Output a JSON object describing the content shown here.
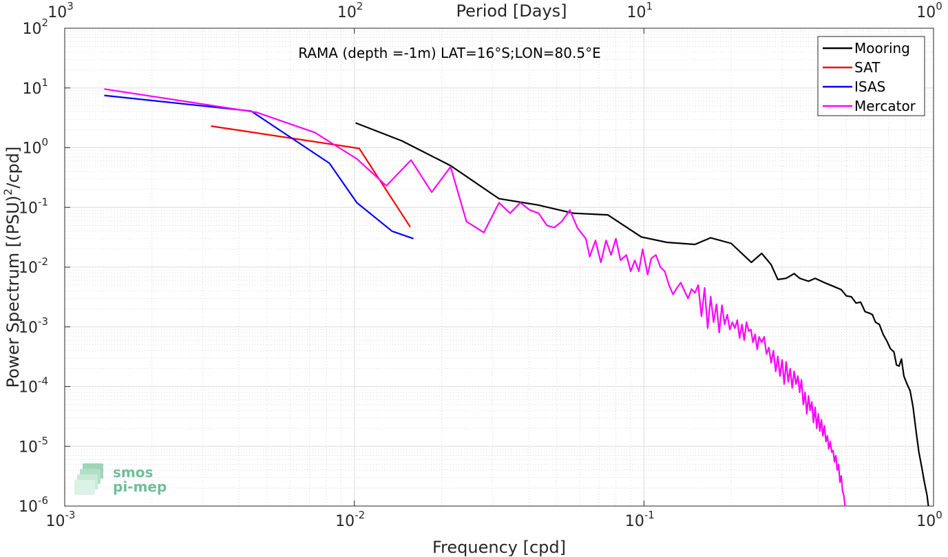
{
  "chart_data": {
    "type": "line",
    "title": "RAMA (depth =-1m) LAT=16°S;LON=80.5°E",
    "xlabel": "Frequency [cpd]",
    "ylabel_main": "Power Spectrum [(PSU)",
    "ylabel_sup": "2",
    "ylabel_tail": "/cpd]",
    "top_xlabel": "Period [Days]",
    "x_scale": "log",
    "y_scale": "log",
    "xlim": [
      0.001,
      1
    ],
    "ylim": [
      1e-06,
      100
    ],
    "grid": true,
    "legend_position": "top-right",
    "x_ticks": [
      {
        "base": "10",
        "exp": "-3"
      },
      {
        "base": "10",
        "exp": "-2"
      },
      {
        "base": "10",
        "exp": "-1"
      },
      {
        "base": "10",
        "exp": "0"
      }
    ],
    "top_ticks": [
      {
        "base": "10",
        "exp": "3"
      },
      {
        "base": "10",
        "exp": "2"
      },
      {
        "base": "10",
        "exp": "1"
      },
      {
        "base": "10",
        "exp": "0"
      }
    ],
    "y_ticks": [
      {
        "base": "10",
        "exp": "-6"
      },
      {
        "base": "10",
        "exp": "-5"
      },
      {
        "base": "10",
        "exp": "-4"
      },
      {
        "base": "10",
        "exp": "-3"
      },
      {
        "base": "10",
        "exp": "-2"
      },
      {
        "base": "10",
        "exp": "-1"
      },
      {
        "base": "10",
        "exp": "0"
      },
      {
        "base": "10",
        "exp": "1"
      },
      {
        "base": "10",
        "exp": "2"
      }
    ],
    "series": [
      {
        "name": "Mooring",
        "color": "#000000",
        "points": [
          [
            0.0101,
            2.6
          ],
          [
            0.0146,
            1.3
          ],
          [
            0.0215,
            0.5
          ],
          [
            0.0316,
            0.14
          ],
          [
            0.043,
            0.11
          ],
          [
            0.057,
            0.08
          ],
          [
            0.075,
            0.075
          ],
          [
            0.098,
            0.032
          ],
          [
            0.12,
            0.026
          ],
          [
            0.15,
            0.024
          ],
          [
            0.17,
            0.031
          ],
          [
            0.2,
            0.025
          ],
          [
            0.235,
            0.012
          ],
          [
            0.255,
            0.017
          ],
          [
            0.275,
            0.011
          ],
          [
            0.29,
            0.0062
          ],
          [
            0.31,
            0.0065
          ],
          [
            0.33,
            0.0078
          ],
          [
            0.345,
            0.0065
          ],
          [
            0.37,
            0.0058
          ],
          [
            0.39,
            0.0065
          ],
          [
            0.42,
            0.0055
          ],
          [
            0.45,
            0.0048
          ],
          [
            0.48,
            0.0042
          ],
          [
            0.5,
            0.0033
          ],
          [
            0.52,
            0.0032
          ],
          [
            0.54,
            0.0025
          ],
          [
            0.56,
            0.0026
          ],
          [
            0.58,
            0.0018
          ],
          [
            0.6,
            0.0017
          ],
          [
            0.615,
            0.0016
          ],
          [
            0.63,
            0.0012
          ],
          [
            0.65,
            0.0011
          ],
          [
            0.67,
            0.00075
          ],
          [
            0.69,
            0.00058
          ],
          [
            0.71,
            0.00043
          ],
          [
            0.73,
            0.00038
          ],
          [
            0.745,
            0.00023
          ],
          [
            0.76,
            0.00022
          ],
          [
            0.775,
            0.00029
          ],
          [
            0.79,
            0.00015
          ],
          [
            0.81,
            0.00011
          ],
          [
            0.83,
            8.5e-05
          ],
          [
            0.85,
            4.5e-05
          ],
          [
            0.87,
            1.8e-05
          ],
          [
            0.89,
            8e-06
          ],
          [
            0.91,
            4.5e-06
          ],
          [
            0.93,
            2.5e-06
          ],
          [
            0.95,
            1.5e-06
          ],
          [
            0.96,
            1e-06
          ]
        ]
      },
      {
        "name": "SAT",
        "color": "#ff0000",
        "points": [
          [
            0.0032,
            2.3
          ],
          [
            0.0104,
            0.97
          ],
          [
            0.0156,
            0.047
          ]
        ]
      },
      {
        "name": "ISAS",
        "color": "#0000ff",
        "points": [
          [
            0.00137,
            7.5
          ],
          [
            0.0044,
            4.1
          ],
          [
            0.0082,
            0.55
          ],
          [
            0.0102,
            0.12
          ],
          [
            0.0135,
            0.04
          ],
          [
            0.016,
            0.03
          ]
        ]
      },
      {
        "name": "Mercator",
        "color": "#ff00ff",
        "points": [
          [
            0.00137,
            9.6
          ],
          [
            0.0046,
            3.9
          ],
          [
            0.0073,
            1.8
          ],
          [
            0.0102,
            0.65
          ],
          [
            0.0129,
            0.23
          ],
          [
            0.0157,
            0.62
          ],
          [
            0.0185,
            0.18
          ],
          [
            0.0215,
            0.48
          ],
          [
            0.0244,
            0.058
          ],
          [
            0.028,
            0.038
          ],
          [
            0.0316,
            0.12
          ],
          [
            0.0345,
            0.08
          ],
          [
            0.0374,
            0.12
          ],
          [
            0.0404,
            0.09
          ],
          [
            0.0433,
            0.08
          ],
          [
            0.0462,
            0.05
          ],
          [
            0.049,
            0.046
          ],
          [
            0.052,
            0.058
          ],
          [
            0.0555,
            0.09
          ],
          [
            0.059,
            0.045
          ],
          [
            0.063,
            0.03
          ],
          [
            0.065,
            0.015
          ],
          [
            0.068,
            0.028
          ],
          [
            0.071,
            0.012
          ],
          [
            0.074,
            0.028
          ],
          [
            0.077,
            0.016
          ],
          [
            0.08,
            0.03
          ],
          [
            0.083,
            0.013
          ],
          [
            0.087,
            0.016
          ],
          [
            0.09,
            0.0085
          ],
          [
            0.093,
            0.013
          ],
          [
            0.096,
            0.0085
          ],
          [
            0.099,
            0.02
          ],
          [
            0.103,
            0.0075
          ],
          [
            0.106,
            0.014
          ],
          [
            0.11,
            0.016
          ],
          [
            0.114,
            0.01
          ],
          [
            0.118,
            0.0085
          ],
          [
            0.122,
            0.005
          ],
          [
            0.126,
            0.0035
          ],
          [
            0.13,
            0.0045
          ],
          [
            0.134,
            0.0055
          ],
          [
            0.138,
            0.004
          ],
          [
            0.142,
            0.003
          ],
          [
            0.146,
            0.0043
          ],
          [
            0.15,
            0.0037
          ],
          [
            0.154,
            0.005
          ],
          [
            0.158,
            0.0015
          ],
          [
            0.162,
            0.0045
          ],
          [
            0.166,
            0.00095
          ],
          [
            0.17,
            0.0032
          ],
          [
            0.174,
            0.0012
          ],
          [
            0.178,
            0.0024
          ],
          [
            0.182,
            0.0008
          ],
          [
            0.186,
            0.0023
          ],
          [
            0.19,
            0.0011
          ],
          [
            0.194,
            0.0016
          ],
          [
            0.198,
            0.0009
          ],
          [
            0.202,
            0.0012
          ],
          [
            0.206,
            0.00095
          ],
          [
            0.21,
            0.0013
          ],
          [
            0.214,
            0.00065
          ],
          [
            0.218,
            0.0011
          ],
          [
            0.222,
            0.0006
          ],
          [
            0.226,
            0.0012
          ],
          [
            0.23,
            0.00085
          ],
          [
            0.234,
            0.0009
          ],
          [
            0.238,
            0.00055
          ],
          [
            0.242,
            0.00075
          ],
          [
            0.246,
            0.00042
          ],
          [
            0.25,
            0.00068
          ],
          [
            0.255,
            0.00055
          ],
          [
            0.26,
            0.00068
          ],
          [
            0.265,
            0.00035
          ],
          [
            0.27,
            0.00045
          ],
          [
            0.275,
            0.00025
          ],
          [
            0.28,
            0.0004
          ],
          [
            0.285,
            0.00018
          ],
          [
            0.29,
            0.00032
          ],
          [
            0.295,
            0.00015
          ],
          [
            0.3,
            0.00028
          ],
          [
            0.305,
            0.00011
          ],
          [
            0.31,
            0.00026
          ],
          [
            0.315,
            0.00012
          ],
          [
            0.32,
            0.0002
          ],
          [
            0.325,
            9.5e-05
          ],
          [
            0.33,
            0.00018
          ],
          [
            0.335,
            0.00011
          ],
          [
            0.34,
            0.00015
          ],
          [
            0.345,
            8e-05
          ],
          [
            0.35,
            0.00013
          ],
          [
            0.355,
            5e-05
          ],
          [
            0.36,
            8e-05
          ],
          [
            0.365,
            3.5e-05
          ],
          [
            0.37,
            7e-05
          ],
          [
            0.375,
            4e-05
          ],
          [
            0.38,
            5.5e-05
          ],
          [
            0.385,
            2.5e-05
          ],
          [
            0.39,
            4.5e-05
          ],
          [
            0.395,
            2e-05
          ],
          [
            0.4,
            3.5e-05
          ],
          [
            0.405,
            1.8e-05
          ],
          [
            0.41,
            2.8e-05
          ],
          [
            0.415,
            1.5e-05
          ],
          [
            0.42,
            2.2e-05
          ],
          [
            0.425,
            1.2e-05
          ],
          [
            0.43,
            1.5e-05
          ],
          [
            0.435,
            9e-06
          ],
          [
            0.44,
            1.2e-05
          ],
          [
            0.445,
            8e-06
          ],
          [
            0.45,
            8.5e-06
          ],
          [
            0.455,
            5.5e-06
          ],
          [
            0.46,
            7e-06
          ],
          [
            0.465,
            4e-06
          ],
          [
            0.47,
            5e-06
          ],
          [
            0.475,
            2.5e-06
          ],
          [
            0.48,
            3.2e-06
          ],
          [
            0.485,
            1.8e-06
          ],
          [
            0.49,
            1.5e-06
          ],
          [
            0.495,
            1e-06
          ]
        ]
      }
    ]
  },
  "logo": {
    "line1": "smos",
    "line2": "pi-mep"
  }
}
